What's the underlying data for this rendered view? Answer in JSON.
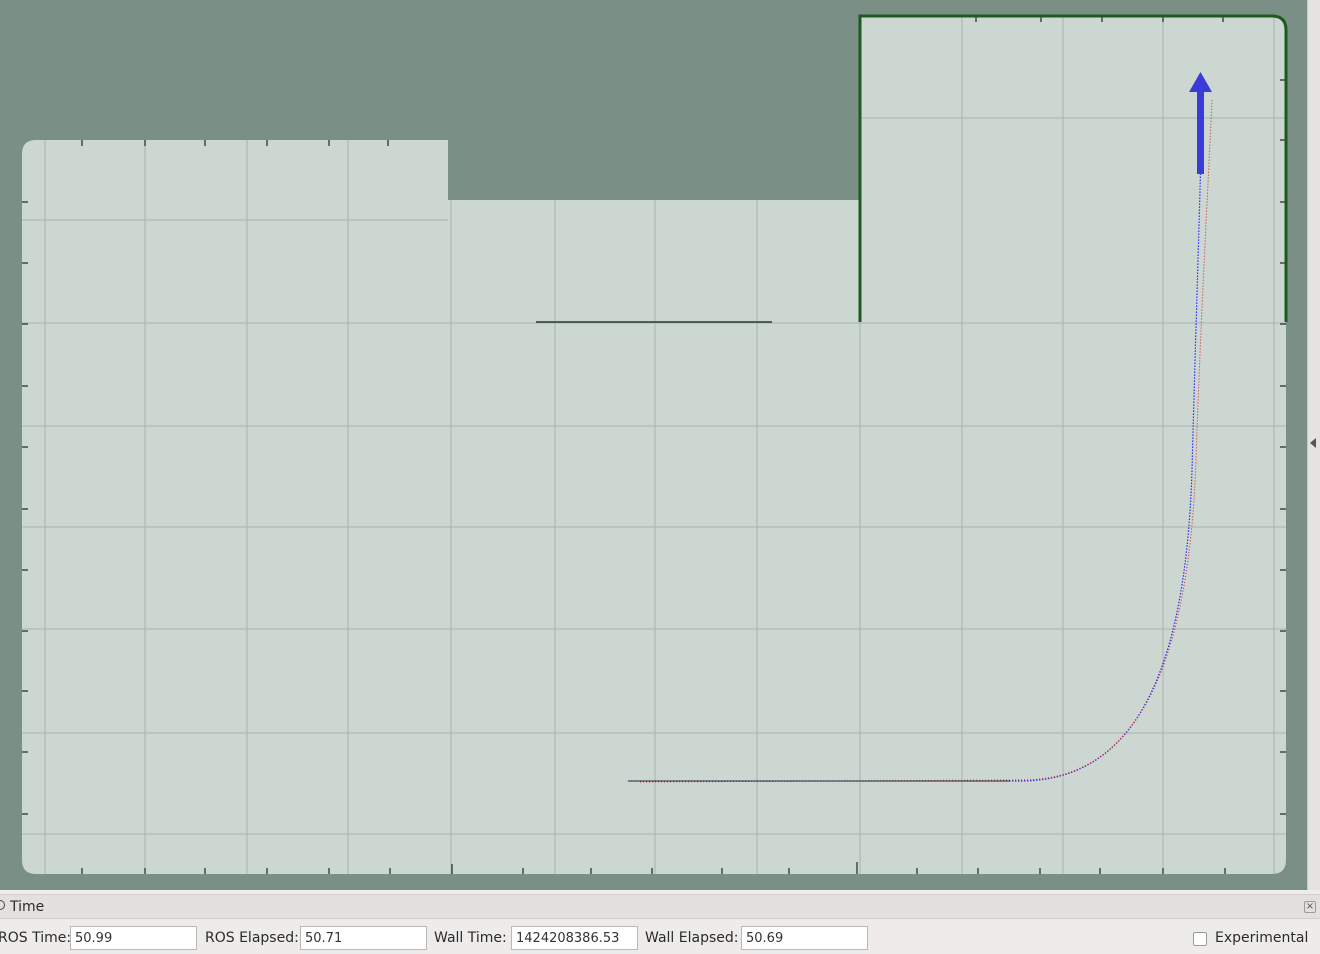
{
  "colors": {
    "background": "#7a9087",
    "floor": "#ccd7d2",
    "grid": "#a9b3ae",
    "wall": "#1e5a1e",
    "path_plan": "#2a2aff",
    "path_odom": "#d62020",
    "robot_arrow": "#3b3bd9"
  },
  "viewport": {
    "description_icons": [
      "map-display",
      "grid",
      "robot-pose-arrow",
      "planned-path",
      "odometry-path"
    ]
  },
  "time_panel": {
    "title": "Time",
    "fields": [
      {
        "label": "ROS Time:",
        "value": "50.99"
      },
      {
        "label": "ROS Elapsed:",
        "value": "50.71"
      },
      {
        "label": "Wall Time:",
        "value": "1424208386.53"
      },
      {
        "label": "Wall Elapsed:",
        "value": "50.69"
      }
    ],
    "experimental_label": "Experimental",
    "experimental_checked": false
  }
}
